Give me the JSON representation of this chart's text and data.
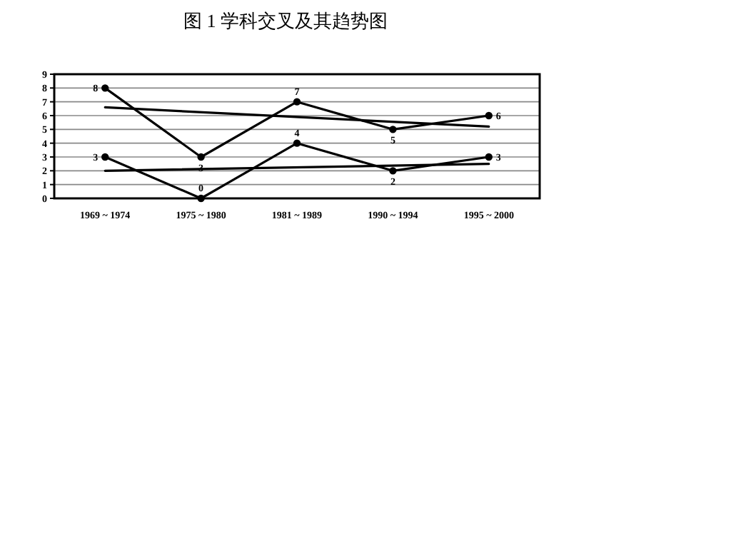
{
  "chart_data": {
    "type": "line",
    "title": "图 1  学科交叉及其趋势图",
    "categories": [
      "1969 ~ 1974",
      "1975 ~ 1980",
      "1981 ~ 1989",
      "1990 ~ 1994",
      "1995 ~ 2000"
    ],
    "series": [
      {
        "color": "#000000",
        "marker": "circle",
        "values": [
          8,
          3,
          7,
          5,
          6
        ],
        "value_labels": [
          "8",
          "3",
          "7",
          "5",
          "6"
        ]
      },
      {
        "color": "#000000",
        "marker": "circle",
        "values": [
          3,
          0,
          4,
          2,
          3
        ],
        "value_labels": [
          "3",
          "0",
          "4",
          "2",
          "3"
        ]
      },
      {
        "color": "#000000",
        "marker": "none",
        "x": [
          "1969 ~ 1974",
          "1995 ~ 2000"
        ],
        "values": [
          6.6,
          5.2
        ]
      },
      {
        "color": "#000000",
        "marker": "none",
        "x": [
          "1969 ~ 1974",
          "1995 ~ 2000"
        ],
        "values": [
          2.0,
          2.5
        ]
      }
    ],
    "ylim": [
      0,
      9
    ],
    "yticks": [
      0,
      1,
      2,
      3,
      4,
      5,
      6,
      7,
      8,
      9
    ],
    "grid": "y",
    "line_style": "solid"
  }
}
